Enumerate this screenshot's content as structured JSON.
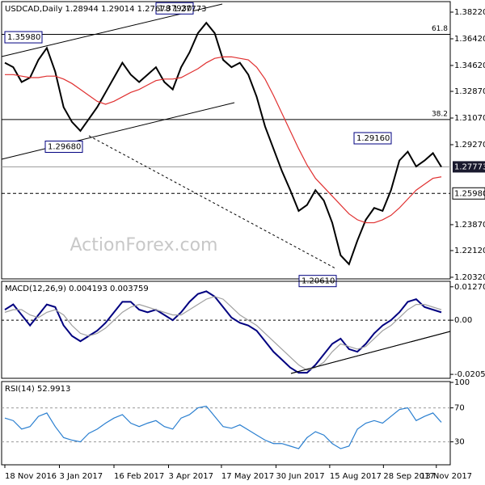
{
  "chart_data": [
    {
      "type": "line",
      "title": "USDCAD,Daily  1.28944 1.29014 1.27678 1.27773",
      "watermark": "ActionForex.com",
      "ylim": [
        1.2021,
        1.3893
      ],
      "yticks": [
        {
          "value": 1.3822,
          "label": "1.38220"
        },
        {
          "value": 1.3642,
          "label": "1.36420"
        },
        {
          "value": 1.3462,
          "label": "1.34620"
        },
        {
          "value": 1.3287,
          "label": "1.32870"
        },
        {
          "value": 1.3107,
          "label": "1.31070"
        },
        {
          "value": 1.2927,
          "label": "1.29270"
        },
        {
          "value": 1.2387,
          "label": "1.23870"
        },
        {
          "value": 1.2212,
          "label": "1.22120"
        },
        {
          "value": 1.2032,
          "label": "1.20320"
        }
      ],
      "series": [
        {
          "color": "#000000",
          "values": [
            1.348,
            1.345,
            1.335,
            1.338,
            1.35,
            1.358,
            1.342,
            1.318,
            1.308,
            1.302,
            1.31,
            1.318,
            1.328,
            1.338,
            1.348,
            1.34,
            1.335,
            1.34,
            1.345,
            1.335,
            1.33,
            1.345,
            1.355,
            1.368,
            1.375,
            1.368,
            1.35,
            1.345,
            1.348,
            1.34,
            1.325,
            1.305,
            1.29,
            1.275,
            1.262,
            1.248,
            1.252,
            1.262,
            1.255,
            1.24,
            1.218,
            1.212,
            1.228,
            1.242,
            1.25,
            1.248,
            1.262,
            1.282,
            1.288,
            1.278,
            1.282,
            1.287,
            1.2777
          ]
        },
        {
          "color": "#e03030",
          "values": [
            1.34,
            1.34,
            1.339,
            1.338,
            1.338,
            1.339,
            1.339,
            1.337,
            1.334,
            1.33,
            1.326,
            1.322,
            1.32,
            1.322,
            1.325,
            1.328,
            1.33,
            1.333,
            1.336,
            1.337,
            1.337,
            1.338,
            1.341,
            1.344,
            1.348,
            1.351,
            1.352,
            1.352,
            1.351,
            1.35,
            1.345,
            1.337,
            1.326,
            1.314,
            1.302,
            1.29,
            1.279,
            1.27,
            1.264,
            1.258,
            1.252,
            1.246,
            1.242,
            1.24,
            1.24,
            1.242,
            1.245,
            1.25,
            1.256,
            1.262,
            1.266,
            1.27,
            1.271
          ]
        }
      ],
      "annotations": [
        {
          "label": "1.35980",
          "value": 1.3598
        },
        {
          "label": "1.37930",
          "value": 1.3793
        },
        {
          "label": "1.29680",
          "value": 1.2968
        },
        {
          "label": "1.29160",
          "value": 1.2916
        },
        {
          "label": "1.20610",
          "value": 1.2061
        }
      ],
      "fib_levels": [
        {
          "label": "61.8",
          "value": 1.3672
        },
        {
          "label": "38.2",
          "value": 1.3097
        }
      ],
      "support": {
        "label": "1.25980",
        "value": 1.2598
      },
      "last": {
        "label": "1.27773",
        "value": 1.27773
      }
    },
    {
      "type": "line",
      "title": "MACD(12,26,9) 0.004193 0.003759",
      "ylim": [
        -0.0221,
        0.0148
      ],
      "yticks": [
        0.012707,
        {
          "value": 0,
          "label": "0.00"
        },
        -0.020599
      ],
      "zero_line": true,
      "series": [
        {
          "color": "#000080",
          "values": [
            0.004,
            0.006,
            0.002,
            -0.002,
            0.002,
            0.006,
            0.005,
            -0.002,
            -0.006,
            -0.008,
            -0.006,
            -0.004,
            -0.001,
            0.003,
            0.007,
            0.007,
            0.004,
            0.003,
            0.004,
            0.002,
            0,
            0.003,
            0.007,
            0.01,
            0.011,
            0.009,
            0.005,
            0.001,
            -0.001,
            -0.002,
            -0.004,
            -0.008,
            -0.012,
            -0.015,
            -0.018,
            -0.02,
            -0.02,
            -0.017,
            -0.013,
            -0.009,
            -0.007,
            -0.011,
            -0.012,
            -0.009,
            -0.005,
            -0.002,
            0,
            0.003,
            0.007,
            0.008,
            0.005,
            0.004,
            0.003
          ]
        },
        {
          "color": "#a0a0a0",
          "values": [
            0.003,
            0.004,
            0.004,
            0.002,
            0.001,
            0.003,
            0.004,
            0.002,
            -0.002,
            -0.005,
            -0.006,
            -0.005,
            -0.003,
            0,
            0.003,
            0.005,
            0.006,
            0.005,
            0.004,
            0.003,
            0.002,
            0.002,
            0.004,
            0.006,
            0.008,
            0.009,
            0.008,
            0.005,
            0.002,
            0,
            -0.002,
            -0.005,
            -0.008,
            -0.011,
            -0.014,
            -0.017,
            -0.019,
            -0.018,
            -0.016,
            -0.012,
            -0.009,
            -0.01,
            -0.011,
            -0.01,
            -0.007,
            -0.004,
            -0.002,
            0.001,
            0.004,
            0.006,
            0.006,
            0.005,
            0.004
          ]
        }
      ]
    },
    {
      "type": "line",
      "title": "RSI(14) 52.9913",
      "ylim": [
        3,
        101
      ],
      "yticks": [
        100,
        70,
        30
      ],
      "grid_levels": [
        70,
        30
      ],
      "series": [
        {
          "color": "#2a7fd0",
          "values": [
            58,
            55,
            45,
            48,
            60,
            64,
            48,
            35,
            32,
            30,
            40,
            45,
            52,
            58,
            62,
            52,
            48,
            52,
            55,
            48,
            45,
            58,
            62,
            70,
            72,
            60,
            48,
            46,
            50,
            44,
            38,
            32,
            28,
            28,
            25,
            22,
            35,
            42,
            38,
            28,
            22,
            25,
            45,
            52,
            55,
            52,
            60,
            68,
            70,
            55,
            60,
            64,
            53
          ]
        }
      ],
      "xticks": [
        {
          "value": 0,
          "label": "18 Nov 2016"
        },
        {
          "value": 6.5,
          "label": "3 Jan 2017"
        },
        {
          "value": 13,
          "label": "16 Feb 2017"
        },
        {
          "value": 19.5,
          "label": "3 Apr 2017"
        },
        {
          "value": 25.8,
          "label": "17 May 2017"
        },
        {
          "value": 32.3,
          "label": "30 Jun 2017"
        },
        {
          "value": 38.7,
          "label": "15 Aug 2017"
        },
        {
          "value": 45.1,
          "label": "28 Sep 2017"
        },
        {
          "value": 51.4,
          "label": "13 Nov 2017"
        }
      ]
    }
  ]
}
